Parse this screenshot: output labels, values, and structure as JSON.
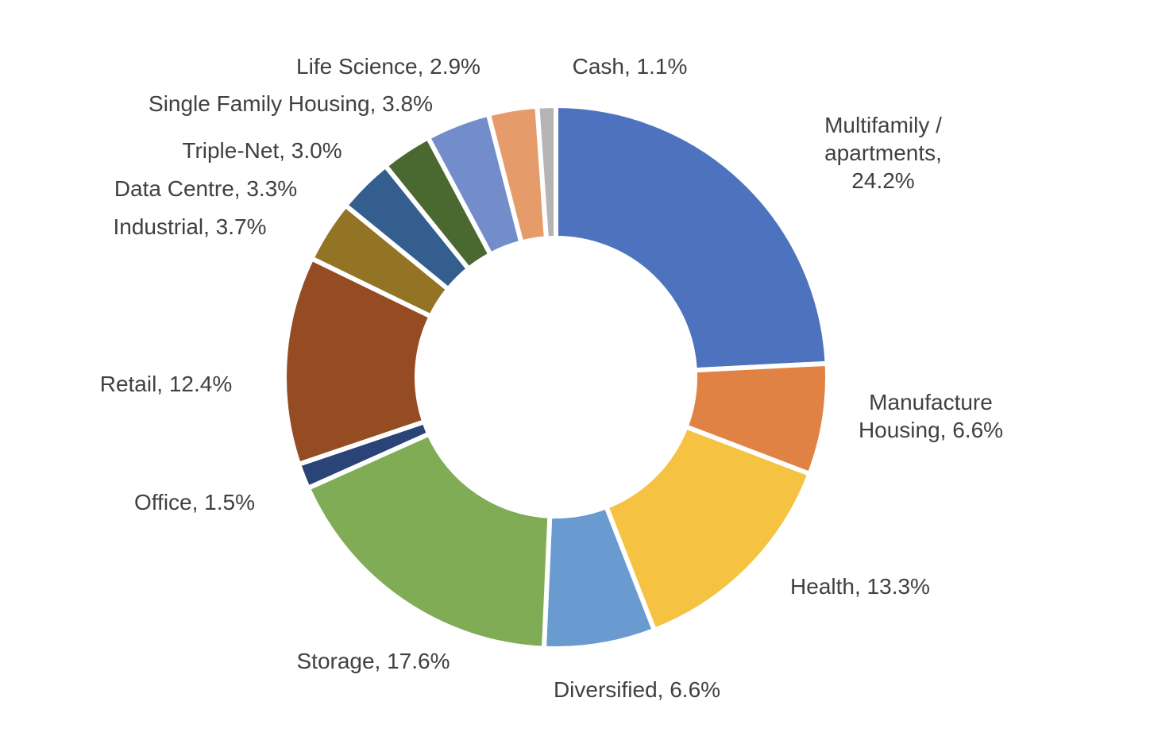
{
  "chart_data": {
    "type": "pie",
    "variant": "donut",
    "title": "",
    "legend": "none",
    "slices": [
      {
        "name": "Multifamily / apartments",
        "value": 24.2,
        "label": [
          "Multifamily /",
          "apartments,",
          "24.2%"
        ],
        "color": "#4E73BE"
      },
      {
        "name": "Manufacture Housing",
        "value": 6.6,
        "label": [
          "Manufacture",
          "Housing, 6.6%"
        ],
        "color": "#E08244"
      },
      {
        "name": "Health",
        "value": 13.3,
        "label": [
          "Health, 13.3%"
        ],
        "color": "#F5C242"
      },
      {
        "name": "Diversified",
        "value": 6.6,
        "label": [
          "Diversified, 6.6%"
        ],
        "color": "#6A9BD0"
      },
      {
        "name": "Storage",
        "value": 17.6,
        "label": [
          "Storage, 17.6%"
        ],
        "color": "#7FAC55"
      },
      {
        "name": "Office",
        "value": 1.5,
        "label": [
          "Office, 1.5%"
        ],
        "color": "#2B4478"
      },
      {
        "name": "Retail",
        "value": 12.4,
        "label": [
          "Retail, 12.4%"
        ],
        "color": "#964C22"
      },
      {
        "name": "Industrial",
        "value": 3.7,
        "label": [
          "Industrial, 3.7%"
        ],
        "color": "#937425"
      },
      {
        "name": "Data Centre",
        "value": 3.3,
        "label": [
          "Data Centre, 3.3%"
        ],
        "color": "#335E8E"
      },
      {
        "name": "Triple-Net",
        "value": 3.0,
        "label": [
          "Triple-Net, 3.0%"
        ],
        "color": "#4A6931"
      },
      {
        "name": "Single Family Housing",
        "value": 3.8,
        "label": [
          "Single Family Housing, 3.8%"
        ],
        "color": "#738DCB"
      },
      {
        "name": "Life Science",
        "value": 2.9,
        "label": [
          "Life Science, 2.9%"
        ],
        "color": "#E69C6A"
      },
      {
        "name": "Cash",
        "value": 1.1,
        "label": [
          "Cash, 1.1%"
        ],
        "color": "#B4B4B4"
      }
    ]
  }
}
